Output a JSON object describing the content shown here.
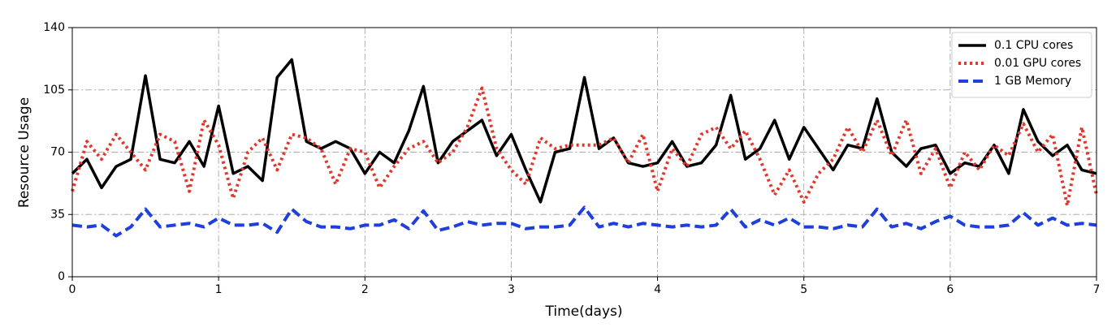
{
  "chart_data": {
    "type": "line",
    "xlabel": "Time(days)",
    "ylabel": "Resource Usage",
    "xlim": [
      0,
      7
    ],
    "xticks": [
      0,
      1,
      2,
      3,
      4,
      5,
      6,
      7
    ],
    "ylim": [
      0,
      140
    ],
    "yticks": [
      0,
      35,
      70,
      105,
      140
    ],
    "grid": true,
    "legend": "upper right",
    "x": [
      0,
      0.1,
      0.2,
      0.3,
      0.4,
      0.5,
      0.6,
      0.7,
      0.8,
      0.9,
      1,
      1.1,
      1.2,
      1.3,
      1.4,
      1.5,
      1.6,
      1.7,
      1.8,
      1.9,
      2,
      2.1,
      2.2,
      2.3,
      2.4,
      2.5,
      2.6,
      2.7,
      2.8,
      2.9,
      3,
      3.1,
      3.2,
      3.3,
      3.4,
      3.5,
      3.6,
      3.7,
      3.8,
      3.9,
      4,
      4.1,
      4.2,
      4.3,
      4.4,
      4.5,
      4.6,
      4.7,
      4.8,
      4.9,
      5,
      5.1,
      5.2,
      5.3,
      5.4,
      5.5,
      5.6,
      5.7,
      5.8,
      5.9,
      6,
      6.1,
      6.2,
      6.3,
      6.4,
      6.5,
      6.6,
      6.7,
      6.8,
      6.9,
      7
    ],
    "series": [
      {
        "name": "0.1 CPU cores",
        "color": "#000000",
        "linestyle": "solid",
        "values": [
          58,
          66,
          50,
          62,
          66,
          113,
          66,
          64,
          76,
          62,
          96,
          58,
          62,
          54,
          112,
          122,
          76,
          72,
          76,
          72,
          58,
          70,
          64,
          82,
          107,
          64,
          76,
          82,
          88,
          68,
          80,
          60,
          42,
          70,
          72,
          112,
          72,
          78,
          64,
          62,
          64,
          76,
          62,
          64,
          74,
          102,
          66,
          72,
          88,
          66,
          84,
          72,
          60,
          74,
          72,
          100,
          70,
          62,
          72,
          74,
          58,
          64,
          62,
          74,
          58,
          94,
          76,
          68,
          74,
          60,
          58
        ]
      },
      {
        "name": "0.01 GPU cores",
        "color": "#e0382e",
        "linestyle": "dotted",
        "values": [
          48,
          76,
          66,
          80,
          70,
          60,
          80,
          76,
          48,
          88,
          74,
          44,
          70,
          78,
          60,
          80,
          78,
          72,
          52,
          72,
          70,
          50,
          62,
          72,
          76,
          64,
          70,
          84,
          106,
          72,
          60,
          52,
          78,
          72,
          74,
          74,
          74,
          78,
          64,
          80,
          48,
          72,
          62,
          80,
          84,
          72,
          82,
          66,
          46,
          60,
          42,
          58,
          66,
          84,
          70,
          88,
          68,
          88,
          58,
          72,
          50,
          70,
          60,
          74,
          68,
          86,
          70,
          80,
          40,
          84,
          46
        ]
      },
      {
        "name": "1 GB Memory",
        "color": "#1f3fdc",
        "linestyle": "dashed",
        "values": [
          29,
          28,
          29,
          23,
          28,
          38,
          28,
          29,
          30,
          28,
          33,
          29,
          29,
          30,
          25,
          38,
          31,
          28,
          28,
          27,
          29,
          29,
          32,
          27,
          37,
          26,
          28,
          31,
          29,
          30,
          30,
          27,
          28,
          28,
          29,
          39,
          28,
          30,
          28,
          30,
          29,
          28,
          29,
          28,
          29,
          38,
          28,
          32,
          29,
          33,
          28,
          28,
          27,
          29,
          28,
          38,
          28,
          30,
          27,
          31,
          34,
          29,
          28,
          28,
          29,
          36,
          29,
          33,
          29,
          30,
          29
        ]
      }
    ]
  }
}
